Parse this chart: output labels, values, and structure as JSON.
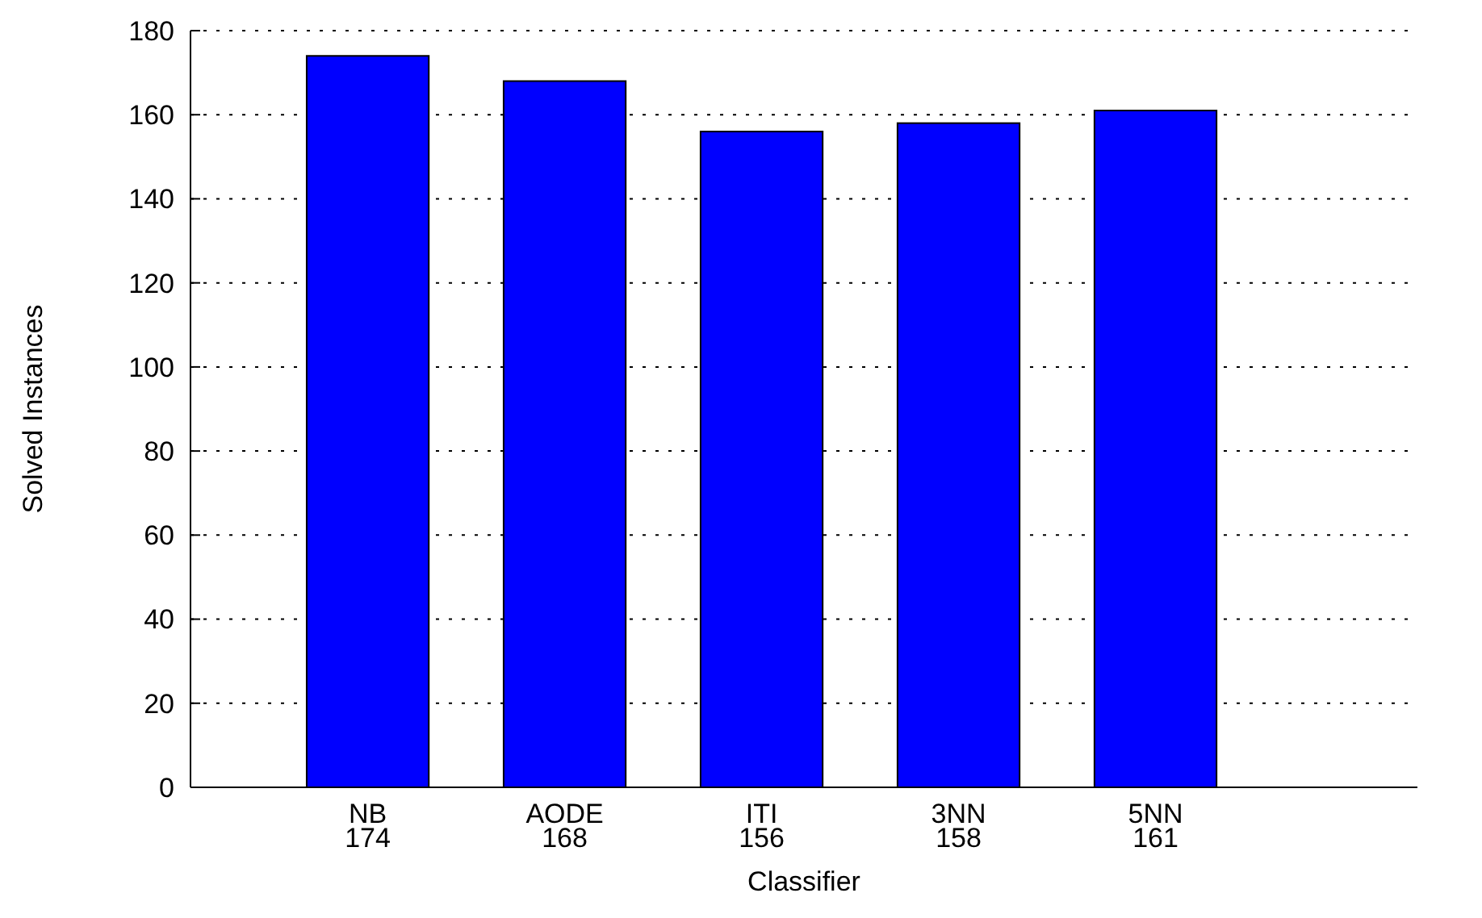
{
  "chart_data": {
    "type": "bar",
    "xlabel": "Classifier",
    "ylabel": "Solved Instances",
    "categories": [
      "NB",
      "AODE",
      "ITI",
      "3NN",
      "5NN"
    ],
    "values": [
      174,
      168,
      156,
      158,
      161
    ],
    "color": "#0000ff",
    "ylim": [
      0,
      180
    ],
    "yticks": [
      0,
      20,
      40,
      60,
      80,
      100,
      120,
      140,
      160,
      180
    ],
    "grid": "y",
    "data_labels": true
  }
}
